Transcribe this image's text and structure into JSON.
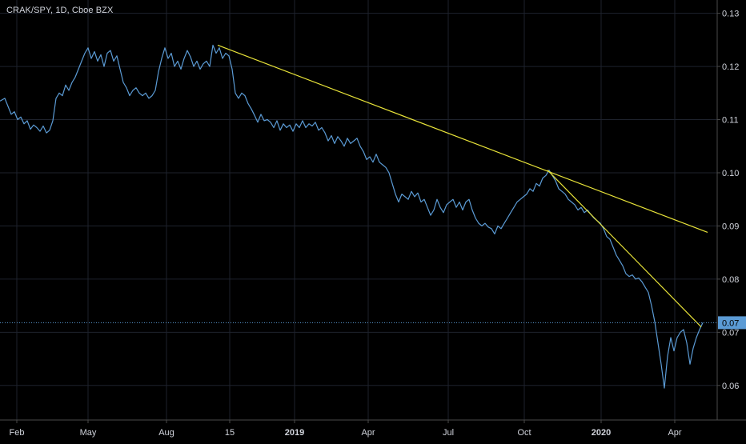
{
  "header": {
    "symbol": "CRAK/SPY, 1D, Cboe BZX"
  },
  "colors": {
    "background": "#000000",
    "price_line": "#5b9bd5",
    "trendline": "#e8e339",
    "grid": "#1e222d",
    "axis_text": "#d1d4dc",
    "last_price_bg": "#5b9bd5"
  },
  "chart_data": {
    "type": "line",
    "title": "",
    "ylim": [
      0.0535,
      0.1325
    ],
    "xlim": [
      0,
      936
    ],
    "y_ticks": [
      0.13,
      0.12,
      0.11,
      0.1,
      0.09,
      0.08,
      0.07,
      0.06
    ],
    "x_ticks": [
      {
        "label": "Feb",
        "x": 21,
        "bold": false
      },
      {
        "label": "May",
        "x": 110,
        "bold": false
      },
      {
        "label": "Aug",
        "x": 208,
        "bold": false
      },
      {
        "label": "15",
        "x": 287,
        "bold": false
      },
      {
        "label": "2019",
        "x": 368,
        "bold": true
      },
      {
        "label": "Apr",
        "x": 460,
        "bold": false
      },
      {
        "label": "Jul",
        "x": 560,
        "bold": false
      },
      {
        "label": "Oct",
        "x": 655,
        "bold": false
      },
      {
        "label": "2020",
        "x": 751,
        "bold": true
      },
      {
        "label": "Apr",
        "x": 843,
        "bold": false
      }
    ],
    "last_price": {
      "value": 0.0718,
      "label": "0.07"
    },
    "series": [
      {
        "values": [
          [
            0,
            0.1135
          ],
          [
            6,
            0.114
          ],
          [
            10,
            0.1125
          ],
          [
            14,
            0.111
          ],
          [
            18,
            0.1115
          ],
          [
            22,
            0.11
          ],
          [
            26,
            0.1105
          ],
          [
            30,
            0.1092
          ],
          [
            34,
            0.1098
          ],
          [
            38,
            0.1082
          ],
          [
            42,
            0.109
          ],
          [
            46,
            0.1085
          ],
          [
            50,
            0.1078
          ],
          [
            54,
            0.1088
          ],
          [
            58,
            0.1075
          ],
          [
            62,
            0.108
          ],
          [
            66,
            0.1098
          ],
          [
            70,
            0.114
          ],
          [
            74,
            0.115
          ],
          [
            78,
            0.1145
          ],
          [
            82,
            0.1165
          ],
          [
            86,
            0.1155
          ],
          [
            90,
            0.117
          ],
          [
            94,
            0.118
          ],
          [
            98,
            0.1195
          ],
          [
            102,
            0.121
          ],
          [
            106,
            0.1225
          ],
          [
            110,
            0.1235
          ],
          [
            114,
            0.1215
          ],
          [
            118,
            0.1228
          ],
          [
            122,
            0.121
          ],
          [
            126,
            0.1222
          ],
          [
            130,
            0.12
          ],
          [
            134,
            0.1225
          ],
          [
            138,
            0.123
          ],
          [
            142,
            0.121
          ],
          [
            146,
            0.122
          ],
          [
            150,
            0.1195
          ],
          [
            154,
            0.117
          ],
          [
            158,
            0.116
          ],
          [
            162,
            0.1145
          ],
          [
            166,
            0.1155
          ],
          [
            170,
            0.116
          ],
          [
            174,
            0.115
          ],
          [
            178,
            0.1145
          ],
          [
            182,
            0.115
          ],
          [
            186,
            0.114
          ],
          [
            190,
            0.1145
          ],
          [
            194,
            0.1155
          ],
          [
            198,
            0.119
          ],
          [
            202,
            0.1215
          ],
          [
            206,
            0.1235
          ],
          [
            210,
            0.1215
          ],
          [
            214,
            0.1225
          ],
          [
            218,
            0.12
          ],
          [
            222,
            0.121
          ],
          [
            226,
            0.1195
          ],
          [
            230,
            0.1215
          ],
          [
            234,
            0.123
          ],
          [
            238,
            0.1218
          ],
          [
            242,
            0.12
          ],
          [
            246,
            0.121
          ],
          [
            250,
            0.1195
          ],
          [
            254,
            0.1205
          ],
          [
            258,
            0.121
          ],
          [
            262,
            0.12
          ],
          [
            266,
            0.124
          ],
          [
            270,
            0.1225
          ],
          [
            274,
            0.1235
          ],
          [
            278,
            0.1215
          ],
          [
            282,
            0.1225
          ],
          [
            286,
            0.122
          ],
          [
            290,
            0.1195
          ],
          [
            294,
            0.115
          ],
          [
            298,
            0.114
          ],
          [
            302,
            0.115
          ],
          [
            306,
            0.1145
          ],
          [
            310,
            0.113
          ],
          [
            314,
            0.112
          ],
          [
            318,
            0.1108
          ],
          [
            322,
            0.1095
          ],
          [
            326,
            0.111
          ],
          [
            330,
            0.1098
          ],
          [
            334,
            0.11
          ],
          [
            338,
            0.1095
          ],
          [
            342,
            0.1085
          ],
          [
            346,
            0.1098
          ],
          [
            350,
            0.108
          ],
          [
            354,
            0.1092
          ],
          [
            358,
            0.1085
          ],
          [
            362,
            0.109
          ],
          [
            366,
            0.1078
          ],
          [
            370,
            0.1092
          ],
          [
            374,
            0.1085
          ],
          [
            378,
            0.1098
          ],
          [
            382,
            0.1085
          ],
          [
            386,
            0.1092
          ],
          [
            390,
            0.1088
          ],
          [
            394,
            0.1095
          ],
          [
            398,
            0.108
          ],
          [
            402,
            0.1085
          ],
          [
            406,
            0.1075
          ],
          [
            410,
            0.106
          ],
          [
            414,
            0.107
          ],
          [
            418,
            0.1055
          ],
          [
            422,
            0.1068
          ],
          [
            426,
            0.106
          ],
          [
            430,
            0.105
          ],
          [
            434,
            0.1065
          ],
          [
            438,
            0.1055
          ],
          [
            442,
            0.106
          ],
          [
            446,
            0.1065
          ],
          [
            450,
            0.105
          ],
          [
            454,
            0.104
          ],
          [
            458,
            0.1025
          ],
          [
            462,
            0.103
          ],
          [
            466,
            0.102
          ],
          [
            470,
            0.1035
          ],
          [
            474,
            0.102
          ],
          [
            478,
            0.1015
          ],
          [
            482,
            0.101
          ],
          [
            486,
            0.1
          ],
          [
            490,
            0.098
          ],
          [
            494,
            0.096
          ],
          [
            498,
            0.0945
          ],
          [
            502,
            0.096
          ],
          [
            506,
            0.0955
          ],
          [
            510,
            0.095
          ],
          [
            514,
            0.0965
          ],
          [
            518,
            0.0955
          ],
          [
            522,
            0.0962
          ],
          [
            526,
            0.0945
          ],
          [
            530,
            0.095
          ],
          [
            534,
            0.0935
          ],
          [
            538,
            0.092
          ],
          [
            542,
            0.093
          ],
          [
            546,
            0.095
          ],
          [
            550,
            0.0935
          ],
          [
            554,
            0.0925
          ],
          [
            558,
            0.094
          ],
          [
            562,
            0.0945
          ],
          [
            566,
            0.095
          ],
          [
            570,
            0.0935
          ],
          [
            574,
            0.0945
          ],
          [
            578,
            0.093
          ],
          [
            582,
            0.0945
          ],
          [
            586,
            0.095
          ],
          [
            590,
            0.093
          ],
          [
            594,
            0.0915
          ],
          [
            598,
            0.0905
          ],
          [
            602,
            0.09
          ],
          [
            606,
            0.0905
          ],
          [
            610,
            0.0898
          ],
          [
            614,
            0.0895
          ],
          [
            618,
            0.0885
          ],
          [
            622,
            0.09
          ],
          [
            626,
            0.0895
          ],
          [
            630,
            0.0905
          ],
          [
            634,
            0.0915
          ],
          [
            638,
            0.0925
          ],
          [
            642,
            0.0935
          ],
          [
            646,
            0.0945
          ],
          [
            650,
            0.095
          ],
          [
            654,
            0.0955
          ],
          [
            658,
            0.096
          ],
          [
            662,
            0.097
          ],
          [
            666,
            0.0965
          ],
          [
            670,
            0.098
          ],
          [
            674,
            0.0975
          ],
          [
            678,
            0.099
          ],
          [
            682,
            0.0995
          ],
          [
            686,
            0.1005
          ],
          [
            690,
            0.0995
          ],
          [
            694,
            0.0985
          ],
          [
            698,
            0.097
          ],
          [
            702,
            0.0965
          ],
          [
            706,
            0.096
          ],
          [
            710,
            0.095
          ],
          [
            714,
            0.0945
          ],
          [
            718,
            0.094
          ],
          [
            722,
            0.093
          ],
          [
            726,
            0.0935
          ],
          [
            730,
            0.0925
          ],
          [
            734,
            0.093
          ],
          [
            738,
            0.0922
          ],
          [
            742,
            0.0915
          ],
          [
            746,
            0.091
          ],
          [
            750,
            0.0905
          ],
          [
            754,
            0.0895
          ],
          [
            758,
            0.088
          ],
          [
            762,
            0.0875
          ],
          [
            766,
            0.086
          ],
          [
            770,
            0.0845
          ],
          [
            774,
            0.0835
          ],
          [
            778,
            0.0825
          ],
          [
            782,
            0.081
          ],
          [
            786,
            0.0805
          ],
          [
            790,
            0.0808
          ],
          [
            794,
            0.08
          ],
          [
            798,
            0.0802
          ],
          [
            802,
            0.0795
          ],
          [
            806,
            0.0785
          ],
          [
            810,
            0.0775
          ],
          [
            814,
            0.075
          ],
          [
            818,
            0.072
          ],
          [
            822,
            0.068
          ],
          [
            826,
            0.064
          ],
          [
            830,
            0.0595
          ],
          [
            834,
            0.0655
          ],
          [
            838,
            0.069
          ],
          [
            842,
            0.0665
          ],
          [
            846,
            0.069
          ],
          [
            850,
            0.07
          ],
          [
            854,
            0.0705
          ],
          [
            858,
            0.068
          ],
          [
            862,
            0.064
          ],
          [
            866,
            0.067
          ],
          [
            870,
            0.069
          ],
          [
            874,
            0.0705
          ],
          [
            878,
            0.0718
          ]
        ]
      }
    ],
    "trendlines": [
      {
        "from": [
          272,
          0.124
        ],
        "to": [
          884,
          0.0888
        ]
      },
      {
        "from": [
          684,
          0.1005
        ],
        "to": [
          876,
          0.071
        ]
      }
    ]
  }
}
